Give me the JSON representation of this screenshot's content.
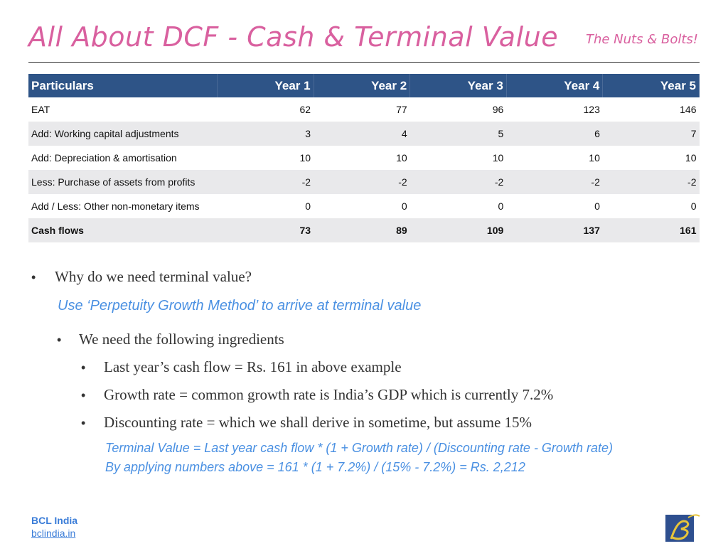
{
  "header": {
    "title": "All About DCF - Cash & Terminal Value",
    "subtitle": "The Nuts & Bolts!"
  },
  "table": {
    "columns": [
      "Particulars",
      "Year 1",
      "Year 2",
      "Year 3",
      "Year 4",
      "Year 5"
    ],
    "rows": [
      [
        "EAT",
        62,
        77,
        96,
        123,
        146
      ],
      [
        "Add: Working capital adjustments",
        3,
        4,
        5,
        6,
        7
      ],
      [
        "Add: Depreciation & amortisation",
        10,
        10,
        10,
        10,
        10
      ],
      [
        "Less: Purchase of assets from profits",
        -2,
        -2,
        -2,
        -2,
        -2
      ],
      [
        "Add / Less: Other non-monetary items",
        0,
        0,
        0,
        0,
        0
      ],
      [
        "Cash flows",
        73,
        89,
        109,
        137,
        161
      ]
    ]
  },
  "body": {
    "question": "Why do we need terminal value?",
    "method": "Use ‘Perpetuity Growth Method’ to arrive at terminal value",
    "ingredients_intro": "We need the following ingredients",
    "ingredients": [
      "Last year’s cash flow = Rs. 161 in above example",
      "Growth rate = common growth rate is India’s GDP which is currently 7.2%",
      "Discounting rate = which we shall derive in sometime, but assume 15%"
    ],
    "formula": "Terminal Value = Last year cash flow * (1 + Growth rate) / (Discounting rate - Growth rate)",
    "calculation": "By applying numbers above = 161 * (1 + 7.2%) / (15% - 7.2%) = Rs. 2,212"
  },
  "footer": {
    "brand": "BCL India",
    "website": "bclindia.in"
  }
}
